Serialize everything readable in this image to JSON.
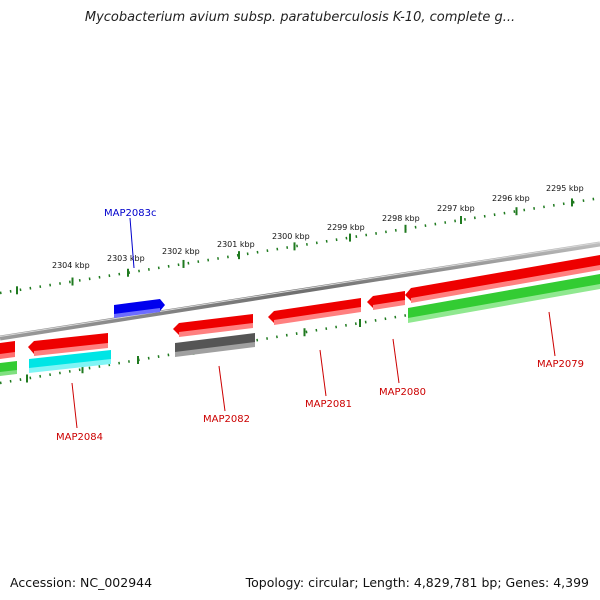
{
  "title": "Mycobacterium avium subsp. paratuberculosis K-10, complete g...",
  "footer": {
    "accession": "Accession: NC_002944",
    "topology": "Topology: circular; Length: 4,829,781 bp; Genes: 4,399"
  },
  "colors": {
    "backbone": "#7a7a7a",
    "ticks": "#1f7a1f",
    "gene_red": "#ee0000",
    "gene_green": "#33cc33",
    "gene_cyan": "#00e5e5",
    "gene_blue": "#0000ee",
    "gene_gray": "#555555",
    "label_red": "#cc0000",
    "label_blue": "#0000cc"
  },
  "scale_labels": [
    "2304 kbp",
    "2303 kbp",
    "2302 kbp",
    "2301 kbp",
    "2300 kbp",
    "2299 kbp",
    "2298 kbp",
    "2297 kbp",
    "2296 kbp",
    "2295 kbp"
  ],
  "gene_labels": [
    {
      "id": "MAP2083c",
      "color": "blue"
    },
    {
      "id": "MAP2084",
      "color": "red"
    },
    {
      "id": "MAP2082",
      "color": "red"
    },
    {
      "id": "MAP2081",
      "color": "red"
    },
    {
      "id": "MAP2080",
      "color": "red"
    },
    {
      "id": "MAP2079",
      "color": "red"
    }
  ]
}
